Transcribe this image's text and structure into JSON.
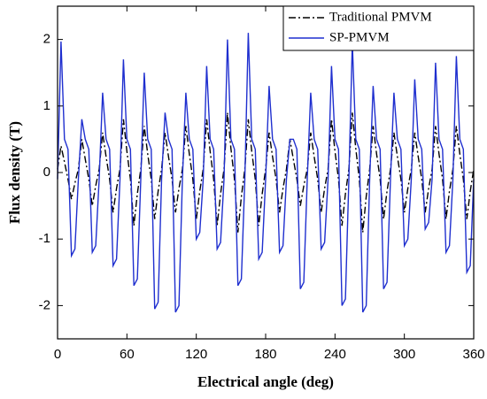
{
  "chart_data": {
    "type": "line",
    "xlabel": "Electrical angle (deg)",
    "ylabel": "Flux density (T)",
    "xlim": [
      0,
      360
    ],
    "xticks": [
      0,
      60,
      120,
      180,
      240,
      300,
      360
    ],
    "ylim": [
      -2.5,
      2.5
    ],
    "yticks": [
      -2,
      -1,
      0,
      1,
      2
    ],
    "legend": "upper right",
    "grid": false,
    "x": [
      0,
      3,
      6,
      9,
      12,
      15,
      18,
      21,
      24,
      27,
      30,
      33,
      36,
      39,
      42,
      45,
      48,
      51,
      54,
      57,
      60,
      63,
      66,
      69,
      72,
      75,
      78,
      81,
      84,
      87,
      90,
      93,
      96,
      99,
      102,
      105,
      108,
      111,
      114,
      117,
      120,
      123,
      126,
      129,
      132,
      135,
      138,
      141,
      144,
      147,
      150,
      153,
      156,
      159,
      162,
      165,
      168,
      171,
      174,
      177,
      180,
      183,
      186,
      189,
      192,
      195,
      198,
      201,
      204,
      207,
      210,
      213,
      216,
      219,
      222,
      225,
      228,
      231,
      234,
      237,
      240,
      243,
      246,
      249,
      252,
      255,
      258,
      261,
      264,
      267,
      270,
      273,
      276,
      279,
      282,
      285,
      288,
      291,
      294,
      297,
      300,
      303,
      306,
      309,
      312,
      315,
      318,
      321,
      324,
      327,
      330,
      333,
      336,
      339,
      342,
      345,
      348,
      351,
      354,
      357,
      360
    ],
    "series": [
      {
        "name": "Traditional PMVM",
        "color": "#000000",
        "style": "dashdot",
        "values": [
          0.05,
          0.4,
          0.16,
          -0.1,
          -0.4,
          -0.16,
          0.05,
          0.5,
          0.2,
          -0.1,
          -0.5,
          -0.2,
          0.05,
          0.6,
          0.24,
          -0.1,
          -0.6,
          -0.24,
          0.05,
          0.8,
          0.32,
          -0.1,
          -0.8,
          -0.32,
          0.05,
          0.7,
          0.28,
          -0.1,
          -0.7,
          -0.28,
          0.05,
          0.6,
          0.24,
          -0.1,
          -0.6,
          -0.24,
          0.05,
          0.7,
          0.28,
          -0.1,
          -0.7,
          -0.28,
          0.05,
          0.8,
          0.32,
          -0.1,
          -0.8,
          -0.32,
          0.05,
          0.9,
          0.36,
          -0.1,
          -0.9,
          -0.36,
          0.05,
          0.8,
          0.32,
          -0.1,
          -0.8,
          -0.32,
          0.05,
          0.6,
          0.24,
          -0.1,
          -0.6,
          -0.24,
          0.05,
          0.5,
          0.2,
          -0.1,
          -0.5,
          -0.2,
          0.05,
          0.6,
          0.24,
          -0.1,
          -0.6,
          -0.24,
          0.05,
          0.8,
          0.32,
          -0.1,
          -0.8,
          -0.32,
          0.05,
          0.9,
          0.36,
          -0.1,
          -0.9,
          -0.36,
          0.05,
          0.7,
          0.28,
          -0.1,
          -0.7,
          -0.28,
          0.05,
          0.6,
          0.24,
          -0.1,
          -0.6,
          -0.24,
          0.05,
          0.6,
          0.24,
          -0.1,
          -0.6,
          -0.24,
          0.05,
          0.7,
          0.28,
          -0.1,
          -0.7,
          -0.28,
          0.05,
          0.7,
          0.28,
          -0.1,
          -0.7,
          -0.28,
          0.05
        ]
      },
      {
        "name": "SP-PMVM",
        "color": "#1f2fcf",
        "style": "solid",
        "values": [
          -0.1,
          1.97,
          0.5,
          0.35,
          -1.25,
          -1.15,
          -0.1,
          0.8,
          0.5,
          0.35,
          -1.2,
          -1.1,
          -0.1,
          1.2,
          0.5,
          0.35,
          -1.4,
          -1.3,
          -0.1,
          1.7,
          0.5,
          0.35,
          -1.7,
          -1.6,
          -0.1,
          1.5,
          0.5,
          0.35,
          -2.05,
          -1.95,
          -0.1,
          0.9,
          0.5,
          0.35,
          -2.1,
          -2.0,
          -0.1,
          1.2,
          0.5,
          0.35,
          -1.0,
          -0.9,
          -0.1,
          1.6,
          0.5,
          0.35,
          -1.15,
          -1.05,
          -0.1,
          2.0,
          0.5,
          0.35,
          -1.7,
          -1.6,
          -0.1,
          2.1,
          0.5,
          0.35,
          -1.3,
          -1.2,
          -0.1,
          1.3,
          0.5,
          0.35,
          -1.2,
          -1.1,
          -0.1,
          0.5,
          0.5,
          0.35,
          -1.75,
          -1.65,
          -0.1,
          1.2,
          0.5,
          0.35,
          -1.15,
          -1.05,
          -0.1,
          1.6,
          0.5,
          0.35,
          -2.0,
          -1.9,
          -0.1,
          1.95,
          0.5,
          0.35,
          -2.1,
          -2.0,
          -0.1,
          1.3,
          0.5,
          0.35,
          -1.75,
          -1.65,
          -0.1,
          1.2,
          0.5,
          0.35,
          -1.1,
          -1.0,
          -0.1,
          1.4,
          0.5,
          0.35,
          -0.85,
          -0.75,
          -0.1,
          1.65,
          0.5,
          0.35,
          -1.2,
          -1.1,
          -0.1,
          1.75,
          0.5,
          0.35,
          -1.5,
          -1.4,
          -0.1
        ]
      }
    ]
  }
}
